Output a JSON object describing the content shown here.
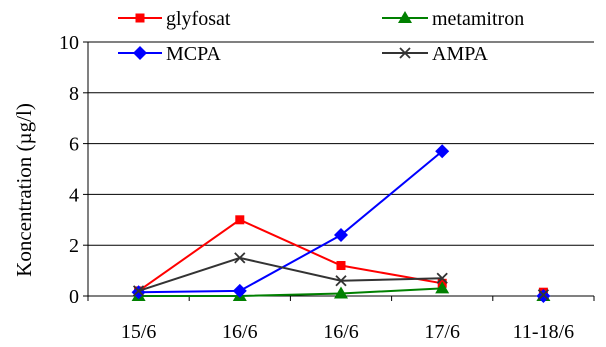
{
  "chart_data": {
    "type": "line",
    "title": "",
    "xlabel": "",
    "ylabel": "Koncentration (µg/l)",
    "ylim": [
      0,
      10
    ],
    "yticks": [
      0,
      2,
      4,
      6,
      8,
      10
    ],
    "categories": [
      "15/6",
      "16/6",
      "16/6",
      "17/6",
      "11-18/6"
    ],
    "grid": "horizontal",
    "legend": "top",
    "series": [
      {
        "name": "glyfosat",
        "color": "#ff0000",
        "marker": "square",
        "values": [
          0.2,
          3.0,
          1.2,
          0.5,
          0.15
        ]
      },
      {
        "name": "metamitron",
        "color": "#008000",
        "marker": "triangle",
        "values": [
          0.0,
          0.0,
          0.1,
          0.3,
          0.0
        ]
      },
      {
        "name": "MCPA",
        "color": "#0000ff",
        "marker": "diamond",
        "values": [
          0.15,
          0.2,
          2.4,
          5.7,
          0.0
        ]
      },
      {
        "name": "AMPA",
        "color": "#333333",
        "marker": "x",
        "values": [
          0.2,
          1.5,
          0.6,
          0.7,
          0.05
        ]
      }
    ],
    "segments_break_before_last": true
  }
}
